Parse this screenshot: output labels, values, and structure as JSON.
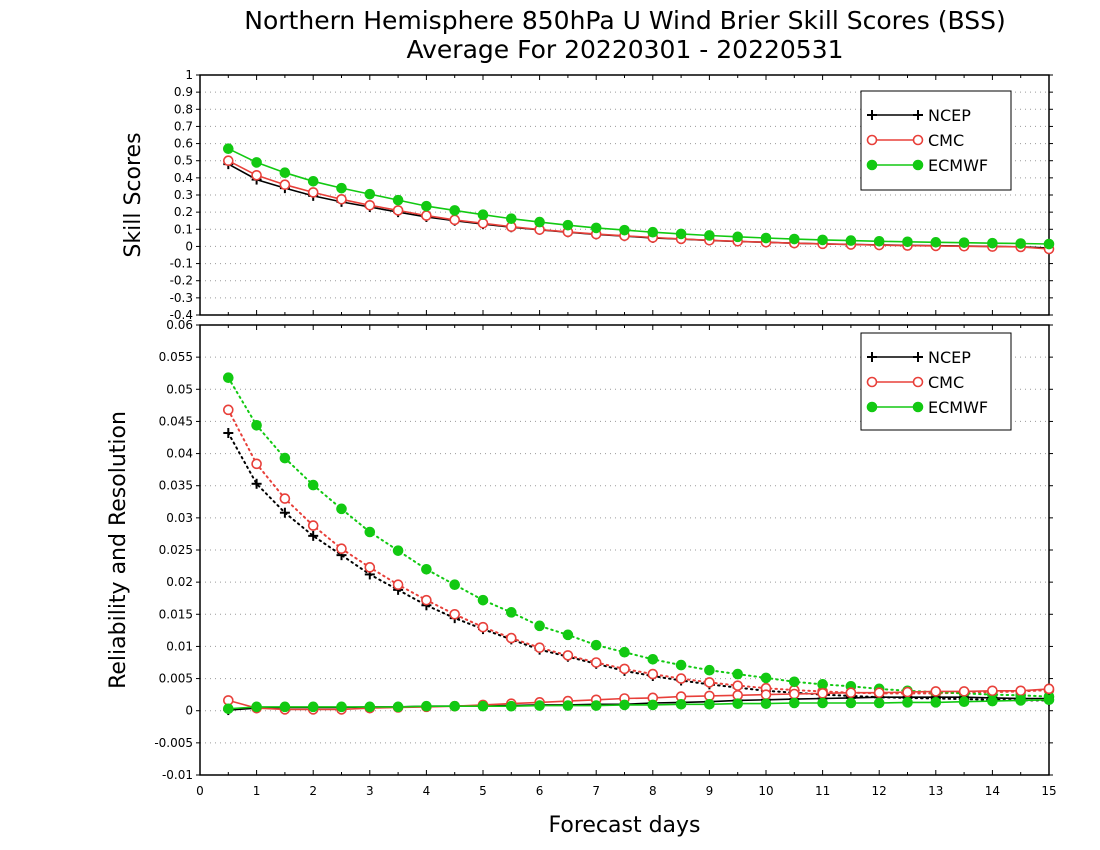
{
  "title_line1": "Northern Hemisphere 850hPa U Wind Brier Skill Scores (BSS)",
  "title_line2": "Average For 20220301 - 20220531",
  "colors": {
    "NCEP": "#000000",
    "CMC": "#e8403a",
    "ECMWF": "#12c912",
    "grid": "#9a9a9a"
  },
  "chart_data": [
    {
      "type": "line",
      "name": "top",
      "ylabel": "Skill Scores",
      "xlabel": "",
      "xlim": [
        0,
        15
      ],
      "ylim": [
        -0.4,
        1
      ],
      "yticks": [
        -0.4,
        -0.3,
        -0.2,
        -0.1,
        0,
        0.1,
        0.2,
        0.3,
        0.4,
        0.5,
        0.6,
        0.7,
        0.8,
        0.9,
        1
      ],
      "ytick_labels": [
        "-0.4",
        "-0.3",
        "-0.2",
        "-0.1",
        "0",
        "0.1",
        "0.2",
        "0.3",
        "0.4",
        "0.5",
        "0.6",
        "0.7",
        "0.8",
        "0.9",
        "1"
      ],
      "grid": true,
      "legend": [
        "NCEP",
        "CMC",
        "ECMWF"
      ],
      "legend_position": "top-right",
      "x": [
        0.5,
        1,
        1.5,
        2,
        2.5,
        3,
        3.5,
        4,
        4.5,
        5,
        5.5,
        6,
        6.5,
        7,
        7.5,
        8,
        8.5,
        9,
        9.5,
        10,
        10.5,
        11,
        11.5,
        12,
        12.5,
        13,
        13.5,
        14,
        14.5,
        15
      ],
      "series": [
        {
          "name": "NCEP",
          "style": "solid",
          "marker": "plus",
          "values": [
            0.48,
            0.39,
            0.34,
            0.295,
            0.26,
            0.23,
            0.2,
            0.172,
            0.15,
            0.13,
            0.112,
            0.097,
            0.083,
            0.07,
            0.06,
            0.05,
            0.043,
            0.035,
            0.029,
            0.024,
            0.019,
            0.015,
            0.012,
            0.009,
            0.006,
            0.004,
            0.002,
            0.0,
            -0.002,
            -0.01
          ]
        },
        {
          "name": "CMC",
          "style": "solid",
          "marker": "open-circle",
          "values": [
            0.5,
            0.415,
            0.36,
            0.315,
            0.275,
            0.24,
            0.21,
            0.18,
            0.155,
            0.135,
            0.115,
            0.098,
            0.085,
            0.072,
            0.062,
            0.052,
            0.044,
            0.036,
            0.03,
            0.024,
            0.019,
            0.015,
            0.011,
            0.008,
            0.005,
            0.003,
            0.001,
            -0.001,
            -0.003,
            -0.015
          ]
        },
        {
          "name": "ECMWF",
          "style": "solid",
          "marker": "filled-circle",
          "values": [
            0.57,
            0.49,
            0.43,
            0.38,
            0.34,
            0.305,
            0.27,
            0.235,
            0.21,
            0.185,
            0.162,
            0.142,
            0.124,
            0.108,
            0.095,
            0.083,
            0.073,
            0.064,
            0.056,
            0.049,
            0.043,
            0.038,
            0.034,
            0.03,
            0.027,
            0.024,
            0.022,
            0.019,
            0.017,
            0.014
          ]
        }
      ]
    },
    {
      "type": "line",
      "name": "bottom",
      "ylabel": "Reliability and Resolution",
      "xlabel": "Forecast days",
      "xlim": [
        0,
        15
      ],
      "ylim": [
        -0.01,
        0.06
      ],
      "xticks": [
        0,
        1,
        2,
        3,
        4,
        5,
        6,
        7,
        8,
        9,
        10,
        11,
        12,
        13,
        14,
        15
      ],
      "xtick_labels": [
        "0",
        "1",
        "2",
        "3",
        "4",
        "5",
        "6",
        "7",
        "8",
        "9",
        "10",
        "11",
        "12",
        "13",
        "14",
        "15"
      ],
      "yticks": [
        -0.01,
        -0.005,
        0,
        0.005,
        0.01,
        0.015,
        0.02,
        0.025,
        0.03,
        0.035,
        0.04,
        0.045,
        0.05,
        0.055,
        0.06
      ],
      "ytick_labels": [
        "-0.01",
        "-0.005",
        "0",
        "0.005",
        "0.01",
        "0.015",
        "0.02",
        "0.025",
        "0.03",
        "0.035",
        "0.04",
        "0.045",
        "0.05",
        "0.055",
        "0.06"
      ],
      "grid": true,
      "legend": [
        "NCEP",
        "CMC",
        "ECMWF"
      ],
      "legend_position": "top-right",
      "x": [
        0.5,
        1,
        1.5,
        2,
        2.5,
        3,
        3.5,
        4,
        4.5,
        5,
        5.5,
        6,
        6.5,
        7,
        7.5,
        8,
        8.5,
        9,
        9.5,
        10,
        10.5,
        11,
        11.5,
        12,
        12.5,
        13,
        13.5,
        14,
        14.5,
        15
      ],
      "series": [
        {
          "name": "NCEP",
          "kind": "resolution",
          "style": "dotted",
          "marker": "plus",
          "values": [
            0.0432,
            0.0353,
            0.0308,
            0.0272,
            0.0242,
            0.0212,
            0.0188,
            0.0164,
            0.0144,
            0.0127,
            0.0111,
            0.0095,
            0.0084,
            0.0073,
            0.0062,
            0.0054,
            0.0047,
            0.0041,
            0.0036,
            0.0031,
            0.0028,
            0.0025,
            0.0023,
            0.0021,
            0.002,
            0.0019,
            0.0018,
            0.0017,
            0.0016,
            0.0016
          ]
        },
        {
          "name": "CMC",
          "kind": "resolution",
          "style": "dotted",
          "marker": "open-circle",
          "values": [
            0.0468,
            0.0384,
            0.033,
            0.0288,
            0.0252,
            0.0223,
            0.0196,
            0.0172,
            0.015,
            0.013,
            0.0113,
            0.0098,
            0.0086,
            0.0075,
            0.0065,
            0.0057,
            0.005,
            0.0044,
            0.0039,
            0.0035,
            0.0032,
            0.003,
            0.0028,
            0.0027,
            0.0027,
            0.0027,
            0.0028,
            0.0029,
            0.003,
            0.0032
          ]
        },
        {
          "name": "ECMWF",
          "kind": "resolution",
          "style": "dotted",
          "marker": "filled-circle",
          "values": [
            0.0518,
            0.0444,
            0.0393,
            0.0351,
            0.0314,
            0.0278,
            0.0249,
            0.022,
            0.0196,
            0.0172,
            0.0153,
            0.0132,
            0.0118,
            0.0102,
            0.0091,
            0.008,
            0.0071,
            0.0063,
            0.0057,
            0.0051,
            0.0045,
            0.0041,
            0.0038,
            0.0034,
            0.0031,
            0.0029,
            0.0027,
            0.0025,
            0.0024,
            0.0022
          ]
        },
        {
          "name": "NCEP",
          "kind": "reliability",
          "style": "solid",
          "marker": "plus",
          "values": [
            0.0001,
            0.0004,
            0.0005,
            0.0005,
            0.0005,
            0.0006,
            0.0006,
            0.0007,
            0.0007,
            0.0008,
            0.0008,
            0.0009,
            0.0009,
            0.001,
            0.001,
            0.0012,
            0.0013,
            0.0014,
            0.0016,
            0.0017,
            0.0018,
            0.0019,
            0.002,
            0.0021,
            0.0021,
            0.0021,
            0.0021,
            0.002,
            0.0019,
            0.0019
          ]
        },
        {
          "name": "CMC",
          "kind": "reliability",
          "style": "solid",
          "marker": "open-circle",
          "values": [
            0.0016,
            0.0004,
            0.0002,
            0.0002,
            0.0002,
            0.0004,
            0.0005,
            0.0006,
            0.0007,
            0.0009,
            0.0011,
            0.0013,
            0.0015,
            0.0017,
            0.0019,
            0.002,
            0.0022,
            0.0023,
            0.0024,
            0.0025,
            0.0026,
            0.0027,
            0.0028,
            0.0028,
            0.0029,
            0.003,
            0.003,
            0.0031,
            0.0031,
            0.0034
          ]
        },
        {
          "name": "ECMWF",
          "kind": "reliability",
          "style": "solid",
          "marker": "filled-circle",
          "values": [
            0.0003,
            0.0006,
            0.0006,
            0.0006,
            0.0006,
            0.0006,
            0.0006,
            0.0007,
            0.0007,
            0.0007,
            0.0007,
            0.0008,
            0.0008,
            0.0008,
            0.0009,
            0.0009,
            0.001,
            0.001,
            0.0011,
            0.0011,
            0.0012,
            0.0012,
            0.0012,
            0.0012,
            0.0013,
            0.0013,
            0.0014,
            0.0015,
            0.0016,
            0.0017
          ]
        }
      ]
    }
  ]
}
